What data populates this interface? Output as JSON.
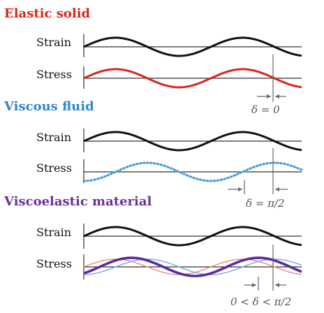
{
  "colors": {
    "elastic_title": "#d9261c",
    "viscous_title": "#2f86c8",
    "viscoelastic_title": "#6a2fa0",
    "strain_curve": "#111111",
    "elastic_stress": "#d9261c",
    "viscous_stress": "#4d9bd6",
    "viscoelastic_stress": "#5b2c9c",
    "axis_line": "#333333",
    "marker": "#666666"
  },
  "panels": [
    {
      "id": "elastic",
      "title": "Elastic solid",
      "strain_label": "Strain",
      "stress_label": "Stress",
      "delta_label": "δ = 0",
      "stress_style": "solid",
      "phase_lag_rad": 0
    },
    {
      "id": "viscous",
      "title": "Viscous fluid",
      "strain_label": "Strain",
      "stress_label": "Stress",
      "delta_label": "δ = π/2",
      "stress_style": "dotted",
      "phase_lag_rad": 1.5708
    },
    {
      "id": "viscoelastic",
      "title": "Viscoelastic material",
      "strain_label": "Strain",
      "stress_label": "Stress",
      "delta_label": "0 < δ < π/2",
      "stress_style": "solid-with-components",
      "phase_lag_rad": 0.785
    }
  ]
}
